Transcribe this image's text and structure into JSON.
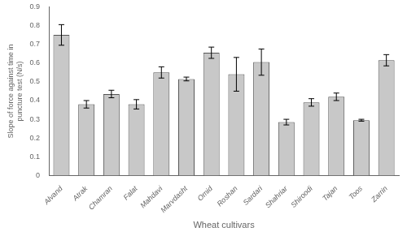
{
  "chart_data": {
    "type": "bar",
    "categories": [
      "Alvand",
      "Atrak",
      "Chamran",
      "Falat",
      "Mahdavi",
      "Marvdasht",
      "Omid",
      "Roshan",
      "Sardari",
      "Shahriar",
      "Shiroodi",
      "Tajan",
      "Toos",
      "Zarrin"
    ],
    "values": [
      0.75,
      0.38,
      0.435,
      0.38,
      0.55,
      0.515,
      0.655,
      0.54,
      0.605,
      0.285,
      0.39,
      0.42,
      0.295,
      0.615
    ],
    "errors": [
      0.055,
      0.02,
      0.02,
      0.025,
      0.03,
      0.01,
      0.03,
      0.09,
      0.07,
      0.015,
      0.02,
      0.02,
      0.005,
      0.03
    ],
    "color": "#c8c8c8",
    "xlabel": "Wheat cultivars",
    "ylabel": "Slope of force against time in\npuncture test (N/s)",
    "ylim": [
      0,
      0.9
    ],
    "yticks": [
      0,
      0.1,
      0.2,
      0.3,
      0.4,
      0.5,
      0.6,
      0.7,
      0.8,
      0.9
    ],
    "grid": false
  }
}
